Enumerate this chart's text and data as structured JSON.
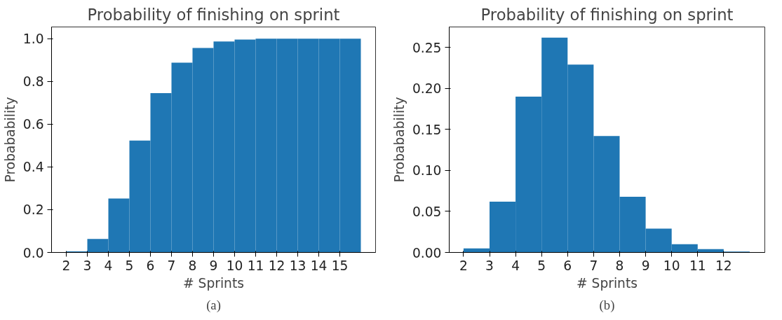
{
  "chart_data": [
    {
      "type": "histogram",
      "title": "Probability of finishing on sprint",
      "xlabel": "# Sprints",
      "ylabel": "Probabability",
      "color": "#1f77b4",
      "bins": [
        2,
        3,
        4,
        5,
        6,
        7,
        8,
        9,
        10,
        11,
        12,
        13,
        14,
        15,
        16
      ],
      "values": [
        0.005,
        0.063,
        0.252,
        0.523,
        0.745,
        0.888,
        0.957,
        0.987,
        0.996,
        1.0,
        1.0,
        1.0,
        1.0,
        1.0
      ],
      "xlim": [
        1.3,
        16.7
      ],
      "ylim": [
        0,
        1.055
      ],
      "xticks": [
        2,
        3,
        4,
        5,
        6,
        7,
        8,
        9,
        10,
        11,
        12,
        13,
        14,
        15
      ],
      "yticks": [
        {
          "value": 0,
          "label": "0.0"
        },
        0.2,
        0.4,
        0.6,
        0.8,
        {
          "value": 1,
          "label": "1.0"
        }
      ],
      "grid": false,
      "annotations": [
        "(a)"
      ]
    },
    {
      "type": "histogram",
      "title": "Probability of finishing on sprint",
      "xlabel": "# Sprints",
      "ylabel": "Probabability",
      "color": "#1f77b4",
      "bins": [
        2,
        3,
        4,
        5,
        6,
        7,
        8,
        9,
        10,
        11,
        12,
        13
      ],
      "values": [
        0.005,
        0.062,
        0.19,
        0.262,
        0.229,
        0.142,
        0.068,
        0.029,
        0.01,
        0.004,
        0.001
      ],
      "xlim": [
        1.45,
        13.58
      ],
      "ylim": [
        0,
        0.275
      ],
      "xticks": [
        2,
        3,
        4,
        5,
        6,
        7,
        8,
        9,
        10,
        11,
        12
      ],
      "yticks": [
        {
          "value": 0,
          "label": "0.00"
        },
        {
          "value": 0.05,
          "label": "0.05"
        },
        {
          "value": 0.1,
          "label": "0.10"
        },
        {
          "value": 0.15,
          "label": "0.15"
        },
        {
          "value": 0.2,
          "label": "0.20"
        },
        {
          "value": 0.25,
          "label": "0.25"
        }
      ],
      "grid": false,
      "annotations": [
        "(b)"
      ]
    }
  ]
}
